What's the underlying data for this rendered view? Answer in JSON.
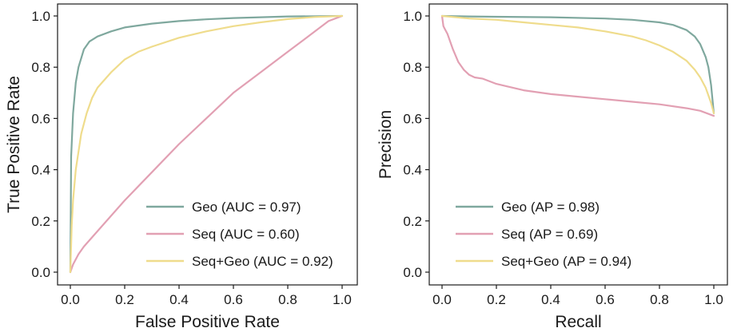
{
  "chart_data": [
    {
      "type": "line",
      "xlabel": "False Positive Rate",
      "ylabel": "True Positive Rate",
      "xlim": [
        0,
        1
      ],
      "ylim": [
        0,
        1
      ],
      "xticks": [
        "0.0",
        "0.2",
        "0.4",
        "0.6",
        "0.8",
        "1.0"
      ],
      "yticks": [
        "0.0",
        "0.2",
        "0.4",
        "0.6",
        "0.8",
        "1.0"
      ],
      "grid": false,
      "legend_position": "bottom-right",
      "series": [
        {
          "name": "Geo (AUC = 0.97)",
          "color": "#7fa89e",
          "x": [
            0,
            0.003,
            0.01,
            0.02,
            0.03,
            0.05,
            0.07,
            0.1,
            0.15,
            0.2,
            0.3,
            0.4,
            0.5,
            0.6,
            0.7,
            0.8,
            0.9,
            1.0
          ],
          "y": [
            0,
            0.45,
            0.62,
            0.74,
            0.8,
            0.87,
            0.9,
            0.92,
            0.94,
            0.955,
            0.97,
            0.98,
            0.987,
            0.992,
            0.995,
            0.998,
            0.999,
            1.0
          ]
        },
        {
          "name": "Seq (AUC = 0.60)",
          "color": "#e2a0b3",
          "x": [
            0,
            0.01,
            0.03,
            0.05,
            0.1,
            0.2,
            0.3,
            0.4,
            0.5,
            0.6,
            0.7,
            0.8,
            0.9,
            0.95,
            1.0
          ],
          "y": [
            0,
            0.03,
            0.07,
            0.1,
            0.16,
            0.28,
            0.39,
            0.5,
            0.6,
            0.7,
            0.78,
            0.86,
            0.94,
            0.98,
            1.0
          ]
        },
        {
          "name": "Seq+Geo (AUC = 0.92)",
          "color": "#efdc8c",
          "x": [
            0,
            0.005,
            0.01,
            0.02,
            0.04,
            0.06,
            0.08,
            0.1,
            0.15,
            0.2,
            0.25,
            0.3,
            0.4,
            0.5,
            0.6,
            0.7,
            0.8,
            0.9,
            1.0
          ],
          "y": [
            0,
            0.18,
            0.28,
            0.4,
            0.54,
            0.62,
            0.68,
            0.72,
            0.78,
            0.83,
            0.86,
            0.88,
            0.915,
            0.94,
            0.96,
            0.975,
            0.988,
            0.996,
            1.0
          ]
        }
      ]
    },
    {
      "type": "line",
      "xlabel": "Recall",
      "ylabel": "Precision",
      "xlim": [
        0,
        1
      ],
      "ylim": [
        0,
        1
      ],
      "xticks": [
        "0.0",
        "0.2",
        "0.4",
        "0.6",
        "0.8",
        "1.0"
      ],
      "yticks": [
        "0.0",
        "0.2",
        "0.4",
        "0.6",
        "0.8",
        "1.0"
      ],
      "grid": false,
      "legend_position": "bottom-right",
      "series": [
        {
          "name": "Geo (AP = 0.98)",
          "color": "#7fa89e",
          "x": [
            0,
            0.1,
            0.2,
            0.4,
            0.6,
            0.7,
            0.8,
            0.85,
            0.9,
            0.93,
            0.95,
            0.97,
            0.98,
            0.99,
            1.0
          ],
          "y": [
            1.0,
            0.998,
            0.997,
            0.995,
            0.99,
            0.985,
            0.975,
            0.965,
            0.945,
            0.92,
            0.89,
            0.84,
            0.8,
            0.73,
            0.62
          ]
        },
        {
          "name": "Seq (AP = 0.69)",
          "color": "#e2a0b3",
          "x": [
            0,
            0.005,
            0.01,
            0.02,
            0.04,
            0.06,
            0.08,
            0.1,
            0.12,
            0.15,
            0.2,
            0.3,
            0.4,
            0.5,
            0.6,
            0.7,
            0.8,
            0.9,
            0.95,
            1.0
          ],
          "y": [
            1.0,
            0.96,
            0.95,
            0.93,
            0.87,
            0.82,
            0.79,
            0.77,
            0.76,
            0.755,
            0.735,
            0.71,
            0.695,
            0.685,
            0.675,
            0.665,
            0.655,
            0.64,
            0.63,
            0.61
          ]
        },
        {
          "name": "Seq+Geo (AP = 0.94)",
          "color": "#efdc8c",
          "x": [
            0,
            0.1,
            0.2,
            0.3,
            0.4,
            0.5,
            0.6,
            0.7,
            0.75,
            0.8,
            0.85,
            0.9,
            0.93,
            0.95,
            0.97,
            0.99,
            1.0
          ],
          "y": [
            1.0,
            0.99,
            0.985,
            0.975,
            0.965,
            0.955,
            0.94,
            0.92,
            0.905,
            0.885,
            0.86,
            0.825,
            0.79,
            0.76,
            0.72,
            0.66,
            0.62
          ]
        }
      ]
    }
  ]
}
